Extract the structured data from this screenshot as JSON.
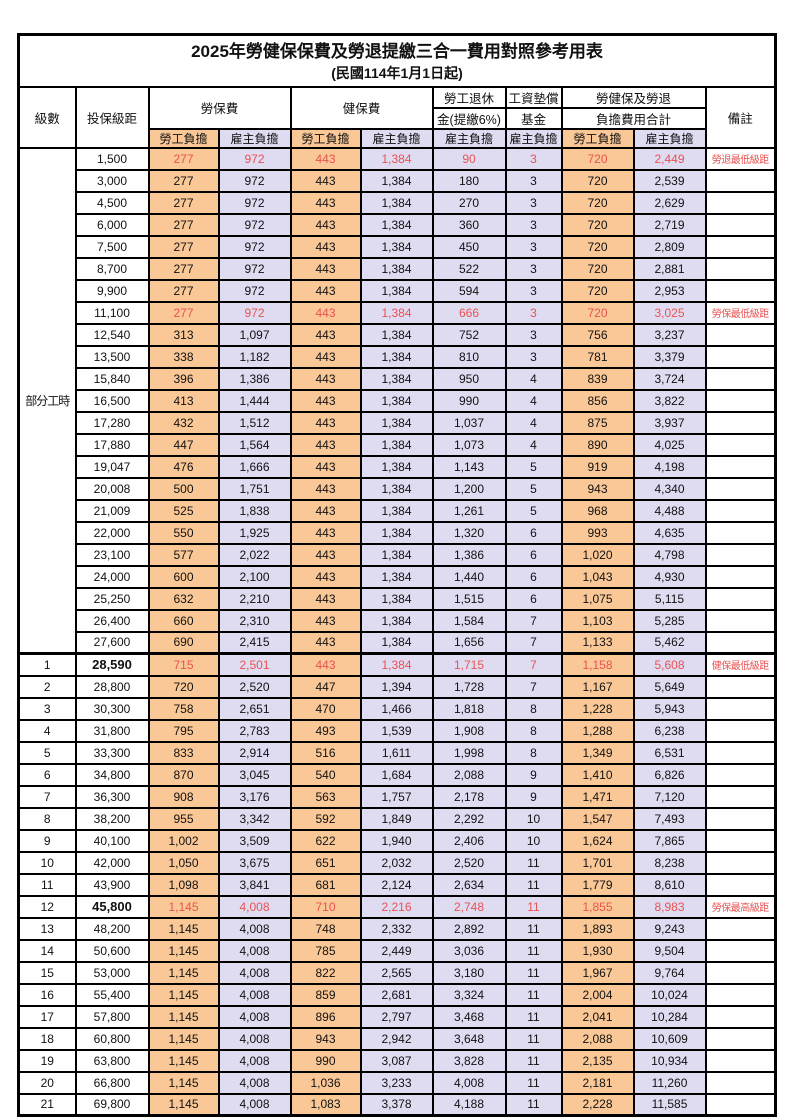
{
  "title": "2025年勞健保保費及勞退提繳三合一費用對照參考用表",
  "subtitle": "(民國114年1月1日起)",
  "header": {
    "level": "級數",
    "bracket": "投保級距",
    "labor_insurance": "勞保費",
    "health_insurance": "健保費",
    "pension_line1": "勞工退休",
    "pension_line2": "金(提繳6%)",
    "wage_fund_line1": "工資墊償",
    "wage_fund_line2": "基金",
    "total_line1": "勞健保及勞退",
    "total_line2": "負擔費用合計",
    "remark": "備註",
    "employee": "勞工負擔",
    "employer": "雇主負擔"
  },
  "part_time_label": "部分工時",
  "colors": {
    "employee_bg": "#FAC896",
    "employer_bg": "#DFDCF2",
    "highlight_red": "#E95252",
    "border": "#000000",
    "text": "#111111"
  },
  "rows": [
    {
      "level": null,
      "bracket": "1,500",
      "li_emp": "277",
      "li_er": "972",
      "hi_emp": "443",
      "hi_er": "1,384",
      "pension": "90",
      "wage_fund": "3",
      "tot_emp": "720",
      "tot_er": "2,449",
      "remark": "勞退最低級距",
      "highlight": true,
      "bold": false
    },
    {
      "level": null,
      "bracket": "3,000",
      "li_emp": "277",
      "li_er": "972",
      "hi_emp": "443",
      "hi_er": "1,384",
      "pension": "180",
      "wage_fund": "3",
      "tot_emp": "720",
      "tot_er": "2,539",
      "remark": "",
      "highlight": false,
      "bold": false
    },
    {
      "level": null,
      "bracket": "4,500",
      "li_emp": "277",
      "li_er": "972",
      "hi_emp": "443",
      "hi_er": "1,384",
      "pension": "270",
      "wage_fund": "3",
      "tot_emp": "720",
      "tot_er": "2,629",
      "remark": "",
      "highlight": false,
      "bold": false
    },
    {
      "level": null,
      "bracket": "6,000",
      "li_emp": "277",
      "li_er": "972",
      "hi_emp": "443",
      "hi_er": "1,384",
      "pension": "360",
      "wage_fund": "3",
      "tot_emp": "720",
      "tot_er": "2,719",
      "remark": "",
      "highlight": false,
      "bold": false
    },
    {
      "level": null,
      "bracket": "7,500",
      "li_emp": "277",
      "li_er": "972",
      "hi_emp": "443",
      "hi_er": "1,384",
      "pension": "450",
      "wage_fund": "3",
      "tot_emp": "720",
      "tot_er": "2,809",
      "remark": "",
      "highlight": false,
      "bold": false
    },
    {
      "level": null,
      "bracket": "8,700",
      "li_emp": "277",
      "li_er": "972",
      "hi_emp": "443",
      "hi_er": "1,384",
      "pension": "522",
      "wage_fund": "3",
      "tot_emp": "720",
      "tot_er": "2,881",
      "remark": "",
      "highlight": false,
      "bold": false
    },
    {
      "level": null,
      "bracket": "9,900",
      "li_emp": "277",
      "li_er": "972",
      "hi_emp": "443",
      "hi_er": "1,384",
      "pension": "594",
      "wage_fund": "3",
      "tot_emp": "720",
      "tot_er": "2,953",
      "remark": "",
      "highlight": false,
      "bold": false
    },
    {
      "level": null,
      "bracket": "11,100",
      "li_emp": "277",
      "li_er": "972",
      "hi_emp": "443",
      "hi_er": "1,384",
      "pension": "666",
      "wage_fund": "3",
      "tot_emp": "720",
      "tot_er": "3,025",
      "remark": "勞保最低級距",
      "highlight": true,
      "bold": false
    },
    {
      "level": null,
      "bracket": "12,540",
      "li_emp": "313",
      "li_er": "1,097",
      "hi_emp": "443",
      "hi_er": "1,384",
      "pension": "752",
      "wage_fund": "3",
      "tot_emp": "756",
      "tot_er": "3,237",
      "remark": "",
      "highlight": false,
      "bold": false
    },
    {
      "level": null,
      "bracket": "13,500",
      "li_emp": "338",
      "li_er": "1,182",
      "hi_emp": "443",
      "hi_er": "1,384",
      "pension": "810",
      "wage_fund": "3",
      "tot_emp": "781",
      "tot_er": "3,379",
      "remark": "",
      "highlight": false,
      "bold": false
    },
    {
      "level": null,
      "bracket": "15,840",
      "li_emp": "396",
      "li_er": "1,386",
      "hi_emp": "443",
      "hi_er": "1,384",
      "pension": "950",
      "wage_fund": "4",
      "tot_emp": "839",
      "tot_er": "3,724",
      "remark": "",
      "highlight": false,
      "bold": false
    },
    {
      "level": null,
      "bracket": "16,500",
      "li_emp": "413",
      "li_er": "1,444",
      "hi_emp": "443",
      "hi_er": "1,384",
      "pension": "990",
      "wage_fund": "4",
      "tot_emp": "856",
      "tot_er": "3,822",
      "remark": "",
      "highlight": false,
      "bold": false
    },
    {
      "level": null,
      "bracket": "17,280",
      "li_emp": "432",
      "li_er": "1,512",
      "hi_emp": "443",
      "hi_er": "1,384",
      "pension": "1,037",
      "wage_fund": "4",
      "tot_emp": "875",
      "tot_er": "3,937",
      "remark": "",
      "highlight": false,
      "bold": false
    },
    {
      "level": null,
      "bracket": "17,880",
      "li_emp": "447",
      "li_er": "1,564",
      "hi_emp": "443",
      "hi_er": "1,384",
      "pension": "1,073",
      "wage_fund": "4",
      "tot_emp": "890",
      "tot_er": "4,025",
      "remark": "",
      "highlight": false,
      "bold": false
    },
    {
      "level": null,
      "bracket": "19,047",
      "li_emp": "476",
      "li_er": "1,666",
      "hi_emp": "443",
      "hi_er": "1,384",
      "pension": "1,143",
      "wage_fund": "5",
      "tot_emp": "919",
      "tot_er": "4,198",
      "remark": "",
      "highlight": false,
      "bold": false
    },
    {
      "level": null,
      "bracket": "20,008",
      "li_emp": "500",
      "li_er": "1,751",
      "hi_emp": "443",
      "hi_er": "1,384",
      "pension": "1,200",
      "wage_fund": "5",
      "tot_emp": "943",
      "tot_er": "4,340",
      "remark": "",
      "highlight": false,
      "bold": false
    },
    {
      "level": null,
      "bracket": "21,009",
      "li_emp": "525",
      "li_er": "1,838",
      "hi_emp": "443",
      "hi_er": "1,384",
      "pension": "1,261",
      "wage_fund": "5",
      "tot_emp": "968",
      "tot_er": "4,488",
      "remark": "",
      "highlight": false,
      "bold": false
    },
    {
      "level": null,
      "bracket": "22,000",
      "li_emp": "550",
      "li_er": "1,925",
      "hi_emp": "443",
      "hi_er": "1,384",
      "pension": "1,320",
      "wage_fund": "6",
      "tot_emp": "993",
      "tot_er": "4,635",
      "remark": "",
      "highlight": false,
      "bold": false
    },
    {
      "level": null,
      "bracket": "23,100",
      "li_emp": "577",
      "li_er": "2,022",
      "hi_emp": "443",
      "hi_er": "1,384",
      "pension": "1,386",
      "wage_fund": "6",
      "tot_emp": "1,020",
      "tot_er": "4,798",
      "remark": "",
      "highlight": false,
      "bold": false
    },
    {
      "level": null,
      "bracket": "24,000",
      "li_emp": "600",
      "li_er": "2,100",
      "hi_emp": "443",
      "hi_er": "1,384",
      "pension": "1,440",
      "wage_fund": "6",
      "tot_emp": "1,043",
      "tot_er": "4,930",
      "remark": "",
      "highlight": false,
      "bold": false
    },
    {
      "level": null,
      "bracket": "25,250",
      "li_emp": "632",
      "li_er": "2,210",
      "hi_emp": "443",
      "hi_er": "1,384",
      "pension": "1,515",
      "wage_fund": "6",
      "tot_emp": "1,075",
      "tot_er": "5,115",
      "remark": "",
      "highlight": false,
      "bold": false
    },
    {
      "level": null,
      "bracket": "26,400",
      "li_emp": "660",
      "li_er": "2,310",
      "hi_emp": "443",
      "hi_er": "1,384",
      "pension": "1,584",
      "wage_fund": "7",
      "tot_emp": "1,103",
      "tot_er": "5,285",
      "remark": "",
      "highlight": false,
      "bold": false
    },
    {
      "level": null,
      "bracket": "27,600",
      "li_emp": "690",
      "li_er": "2,415",
      "hi_emp": "443",
      "hi_er": "1,384",
      "pension": "1,656",
      "wage_fund": "7",
      "tot_emp": "1,133",
      "tot_er": "5,462",
      "remark": "",
      "highlight": false,
      "bold": false
    },
    {
      "level": "1",
      "bracket": "28,590",
      "li_emp": "715",
      "li_er": "2,501",
      "hi_emp": "443",
      "hi_er": "1,384",
      "pension": "1,715",
      "wage_fund": "7",
      "tot_emp": "1,158",
      "tot_er": "5,608",
      "remark": "健保最低級距",
      "highlight": true,
      "bold": true
    },
    {
      "level": "2",
      "bracket": "28,800",
      "li_emp": "720",
      "li_er": "2,520",
      "hi_emp": "447",
      "hi_er": "1,394",
      "pension": "1,728",
      "wage_fund": "7",
      "tot_emp": "1,167",
      "tot_er": "5,649",
      "remark": "",
      "highlight": false,
      "bold": false
    },
    {
      "level": "3",
      "bracket": "30,300",
      "li_emp": "758",
      "li_er": "2,651",
      "hi_emp": "470",
      "hi_er": "1,466",
      "pension": "1,818",
      "wage_fund": "8",
      "tot_emp": "1,228",
      "tot_er": "5,943",
      "remark": "",
      "highlight": false,
      "bold": false
    },
    {
      "level": "4",
      "bracket": "31,800",
      "li_emp": "795",
      "li_er": "2,783",
      "hi_emp": "493",
      "hi_er": "1,539",
      "pension": "1,908",
      "wage_fund": "8",
      "tot_emp": "1,288",
      "tot_er": "6,238",
      "remark": "",
      "highlight": false,
      "bold": false
    },
    {
      "level": "5",
      "bracket": "33,300",
      "li_emp": "833",
      "li_er": "2,914",
      "hi_emp": "516",
      "hi_er": "1,611",
      "pension": "1,998",
      "wage_fund": "8",
      "tot_emp": "1,349",
      "tot_er": "6,531",
      "remark": "",
      "highlight": false,
      "bold": false
    },
    {
      "level": "6",
      "bracket": "34,800",
      "li_emp": "870",
      "li_er": "3,045",
      "hi_emp": "540",
      "hi_er": "1,684",
      "pension": "2,088",
      "wage_fund": "9",
      "tot_emp": "1,410",
      "tot_er": "6,826",
      "remark": "",
      "highlight": false,
      "bold": false
    },
    {
      "level": "7",
      "bracket": "36,300",
      "li_emp": "908",
      "li_er": "3,176",
      "hi_emp": "563",
      "hi_er": "1,757",
      "pension": "2,178",
      "wage_fund": "9",
      "tot_emp": "1,471",
      "tot_er": "7,120",
      "remark": "",
      "highlight": false,
      "bold": false
    },
    {
      "level": "8",
      "bracket": "38,200",
      "li_emp": "955",
      "li_er": "3,342",
      "hi_emp": "592",
      "hi_er": "1,849",
      "pension": "2,292",
      "wage_fund": "10",
      "tot_emp": "1,547",
      "tot_er": "7,493",
      "remark": "",
      "highlight": false,
      "bold": false
    },
    {
      "level": "9",
      "bracket": "40,100",
      "li_emp": "1,002",
      "li_er": "3,509",
      "hi_emp": "622",
      "hi_er": "1,940",
      "pension": "2,406",
      "wage_fund": "10",
      "tot_emp": "1,624",
      "tot_er": "7,865",
      "remark": "",
      "highlight": false,
      "bold": false
    },
    {
      "level": "10",
      "bracket": "42,000",
      "li_emp": "1,050",
      "li_er": "3,675",
      "hi_emp": "651",
      "hi_er": "2,032",
      "pension": "2,520",
      "wage_fund": "11",
      "tot_emp": "1,701",
      "tot_er": "8,238",
      "remark": "",
      "highlight": false,
      "bold": false
    },
    {
      "level": "11",
      "bracket": "43,900",
      "li_emp": "1,098",
      "li_er": "3,841",
      "hi_emp": "681",
      "hi_er": "2,124",
      "pension": "2,634",
      "wage_fund": "11",
      "tot_emp": "1,779",
      "tot_er": "8,610",
      "remark": "",
      "highlight": false,
      "bold": false
    },
    {
      "level": "12",
      "bracket": "45,800",
      "li_emp": "1,145",
      "li_er": "4,008",
      "hi_emp": "710",
      "hi_er": "2,216",
      "pension": "2,748",
      "wage_fund": "11",
      "tot_emp": "1,855",
      "tot_er": "8,983",
      "remark": "勞保最高級距",
      "highlight": true,
      "bold": true
    },
    {
      "level": "13",
      "bracket": "48,200",
      "li_emp": "1,145",
      "li_er": "4,008",
      "hi_emp": "748",
      "hi_er": "2,332",
      "pension": "2,892",
      "wage_fund": "11",
      "tot_emp": "1,893",
      "tot_er": "9,243",
      "remark": "",
      "highlight": false,
      "bold": false
    },
    {
      "level": "14",
      "bracket": "50,600",
      "li_emp": "1,145",
      "li_er": "4,008",
      "hi_emp": "785",
      "hi_er": "2,449",
      "pension": "3,036",
      "wage_fund": "11",
      "tot_emp": "1,930",
      "tot_er": "9,504",
      "remark": "",
      "highlight": false,
      "bold": false
    },
    {
      "level": "15",
      "bracket": "53,000",
      "li_emp": "1,145",
      "li_er": "4,008",
      "hi_emp": "822",
      "hi_er": "2,565",
      "pension": "3,180",
      "wage_fund": "11",
      "tot_emp": "1,967",
      "tot_er": "9,764",
      "remark": "",
      "highlight": false,
      "bold": false
    },
    {
      "level": "16",
      "bracket": "55,400",
      "li_emp": "1,145",
      "li_er": "4,008",
      "hi_emp": "859",
      "hi_er": "2,681",
      "pension": "3,324",
      "wage_fund": "11",
      "tot_emp": "2,004",
      "tot_er": "10,024",
      "remark": "",
      "highlight": false,
      "bold": false
    },
    {
      "level": "17",
      "bracket": "57,800",
      "li_emp": "1,145",
      "li_er": "4,008",
      "hi_emp": "896",
      "hi_er": "2,797",
      "pension": "3,468",
      "wage_fund": "11",
      "tot_emp": "2,041",
      "tot_er": "10,284",
      "remark": "",
      "highlight": false,
      "bold": false
    },
    {
      "level": "18",
      "bracket": "60,800",
      "li_emp": "1,145",
      "li_er": "4,008",
      "hi_emp": "943",
      "hi_er": "2,942",
      "pension": "3,648",
      "wage_fund": "11",
      "tot_emp": "2,088",
      "tot_er": "10,609",
      "remark": "",
      "highlight": false,
      "bold": false
    },
    {
      "level": "19",
      "bracket": "63,800",
      "li_emp": "1,145",
      "li_er": "4,008",
      "hi_emp": "990",
      "hi_er": "3,087",
      "pension": "3,828",
      "wage_fund": "11",
      "tot_emp": "2,135",
      "tot_er": "10,934",
      "remark": "",
      "highlight": false,
      "bold": false
    },
    {
      "level": "20",
      "bracket": "66,800",
      "li_emp": "1,145",
      "li_er": "4,008",
      "hi_emp": "1,036",
      "hi_er": "3,233",
      "pension": "4,008",
      "wage_fund": "11",
      "tot_emp": "2,181",
      "tot_er": "11,260",
      "remark": "",
      "highlight": false,
      "bold": false
    },
    {
      "level": "21",
      "bracket": "69,800",
      "li_emp": "1,145",
      "li_er": "4,008",
      "hi_emp": "1,083",
      "hi_er": "3,378",
      "pension": "4,188",
      "wage_fund": "11",
      "tot_emp": "2,228",
      "tot_er": "11,585",
      "remark": "",
      "highlight": false,
      "bold": false
    }
  ]
}
